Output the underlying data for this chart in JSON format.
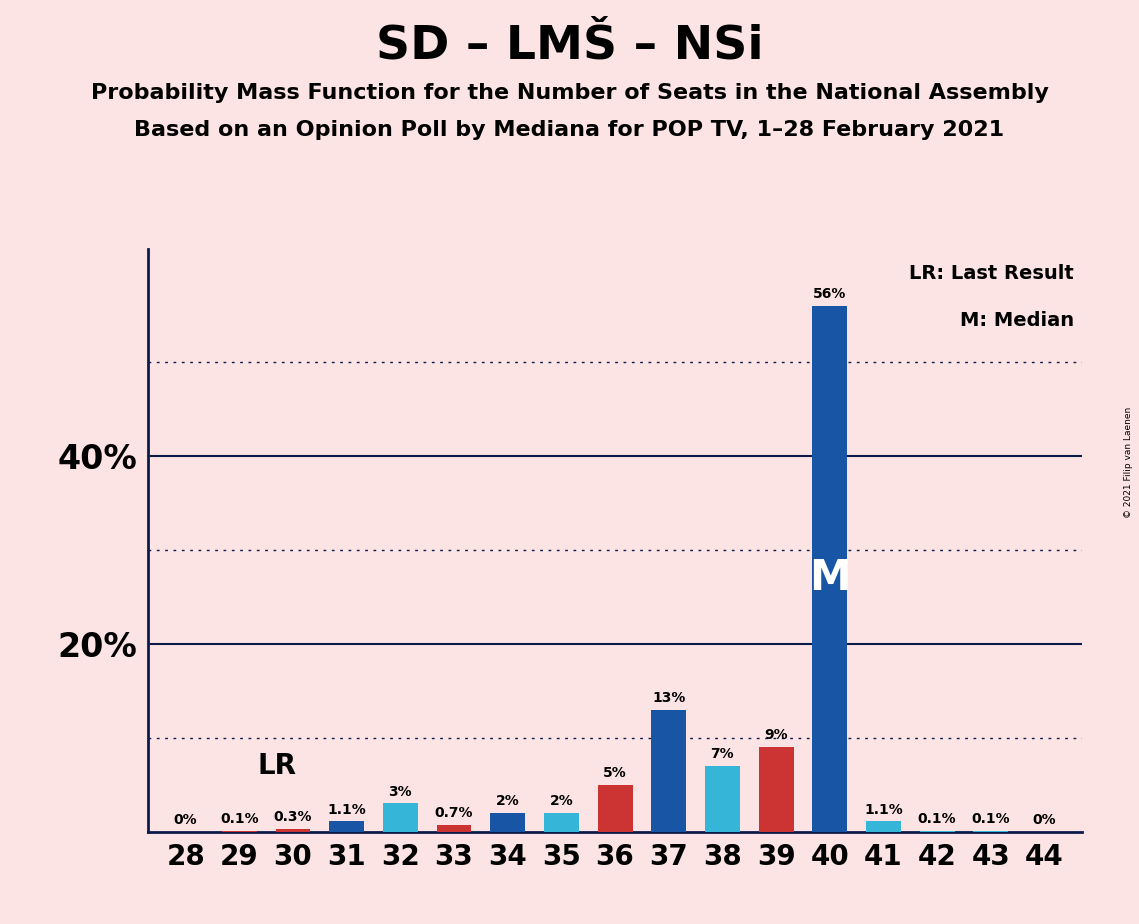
{
  "title": "SD – LMŠ – NSi",
  "subtitle1": "Probability Mass Function for the Number of Seats in the National Assembly",
  "subtitle2": "Based on an Opinion Poll by Mediana for POP TV, 1–28 February 2021",
  "seats": [
    28,
    29,
    30,
    31,
    32,
    33,
    34,
    35,
    36,
    37,
    38,
    39,
    40,
    41,
    42,
    43,
    44
  ],
  "values": [
    0.0,
    0.1,
    0.3,
    1.1,
    3.0,
    0.7,
    2.0,
    2.0,
    5.0,
    13.0,
    7.0,
    9.0,
    56.0,
    1.1,
    0.1,
    0.1,
    0.0
  ],
  "colors": [
    "#f0b0b0",
    "#cc3333",
    "#cc3333",
    "#1955a5",
    "#35b5d8",
    "#cc3333",
    "#1955a5",
    "#35b5d8",
    "#cc3333",
    "#1955a5",
    "#35b5d8",
    "#cc3333",
    "#1955a5",
    "#35b5d8",
    "#35b5d8",
    "#35b5d8",
    "#f0b0b0"
  ],
  "label_values": [
    "0%",
    "0.1%",
    "0.3%",
    "1.1%",
    "3%",
    "0.7%",
    "2%",
    "2%",
    "5%",
    "13%",
    "7%",
    "9%",
    "56%",
    "1.1%",
    "0.1%",
    "0.1%",
    "0%"
  ],
  "background_color": "#fce4e4",
  "lr_seat": 30,
  "median_seat": 40,
  "ylim_max": 62,
  "solid_lines": [
    20,
    40
  ],
  "dotted_lines": [
    10,
    30,
    50
  ],
  "legend_text1": "LR: Last Result",
  "legend_text2": "M: Median",
  "copyright": "© 2021 Filip van Laenen",
  "bar_width": 0.65,
  "title_fontsize": 34,
  "subtitle_fontsize": 16,
  "ytick_fontsize": 24,
  "xtick_fontsize": 20
}
